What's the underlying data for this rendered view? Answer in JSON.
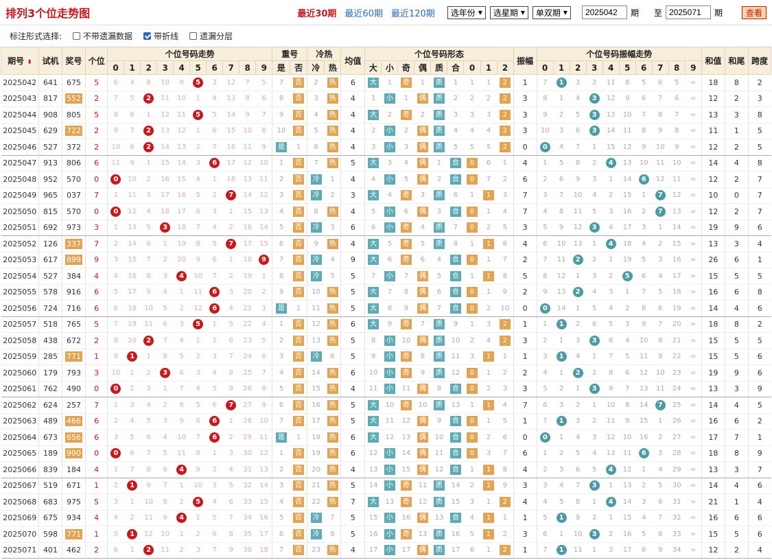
{
  "header": {
    "title": "排列3个位走势图",
    "range_links": [
      "最近30期",
      "最近60期",
      "最近120期"
    ],
    "active": 0,
    "selects": [
      "选年份",
      "选星期",
      "单双期"
    ],
    "from": "2025042",
    "to": "2025071",
    "qi": "期",
    "zhi": "至",
    "query": "查看"
  },
  "options": {
    "label": "标注形式选择:",
    "items": [
      {
        "label": "不带遗漏数据",
        "checked": false
      },
      {
        "label": "带折线",
        "checked": true
      },
      {
        "label": "遗漏分层",
        "checked": false
      }
    ]
  },
  "head_top": [
    "期号",
    "试机",
    "奖号",
    "个位",
    "个位号码走势",
    "重号",
    "冷热",
    "均值",
    "个位号码形态",
    "振幅",
    "个位号码振幅走势",
    "和值",
    "和尾",
    "跨度"
  ],
  "sort_icon": "sort-arrows-icon",
  "digits": [
    "0",
    "1",
    "2",
    "3",
    "4",
    "5",
    "6",
    "7",
    "8",
    "9"
  ],
  "sub_chong": [
    "是",
    "否"
  ],
  "sub_lr": [
    "冷",
    "热"
  ],
  "sub_form": [
    "大",
    "小",
    "奇",
    "偶",
    "质",
    "合",
    "0",
    "1",
    "2"
  ],
  "colors": {
    "red": "#c8181e",
    "orange": "#e2a353",
    "teal": "#5eabb5",
    "header": "#f7efdc"
  },
  "rows": [
    {
      "p": "2025042",
      "s": "641",
      "j": "675",
      "t": false,
      "d": 5,
      "c": "否",
      "h": "热",
      "m": 6,
      "b": "大",
      "q": "奇",
      "z": "质",
      "r": 2,
      "a": 1,
      "av": 1,
      "hz": 18,
      "hw": 8,
      "k": 2
    },
    {
      "p": "2025043",
      "s": "817",
      "j": "552",
      "t": true,
      "d": 2,
      "c": "否",
      "h": "热",
      "m": 4,
      "b": "小",
      "q": "偶",
      "z": "质",
      "r": 2,
      "a": 3,
      "av": 3,
      "hz": 12,
      "hw": 2,
      "k": 3
    },
    {
      "p": "2025044",
      "s": "908",
      "j": "805",
      "t": false,
      "d": 5,
      "c": "否",
      "h": "热",
      "m": 4,
      "b": "大",
      "q": "奇",
      "z": "质",
      "r": 2,
      "a": 3,
      "av": 3,
      "hz": 13,
      "hw": 3,
      "k": 8
    },
    {
      "p": "2025045",
      "s": "629",
      "j": "722",
      "t": true,
      "d": 2,
      "c": "否",
      "h": "热",
      "m": 4,
      "b": "小",
      "q": "偶",
      "z": "质",
      "r": 2,
      "a": 3,
      "av": 3,
      "hz": 11,
      "hw": 1,
      "k": 5
    },
    {
      "p": "2025046",
      "s": "527",
      "j": "372",
      "t": false,
      "d": 2,
      "c": "是",
      "h": "热",
      "m": 4,
      "b": "小",
      "q": "偶",
      "z": "质",
      "r": 2,
      "a": 0,
      "av": 0,
      "hz": 12,
      "hw": 2,
      "k": 5
    },
    {
      "p": "2025047",
      "s": "913",
      "j": "806",
      "t": false,
      "d": 6,
      "c": "否",
      "h": "热",
      "m": 5,
      "b": "大",
      "q": "偶",
      "z": "合",
      "r": 0,
      "a": 4,
      "av": 4,
      "hz": 14,
      "hw": 4,
      "k": 8
    },
    {
      "p": "2025048",
      "s": "952",
      "j": "570",
      "t": false,
      "d": 0,
      "c": "否",
      "h": "冷",
      "m": 4,
      "b": "小",
      "q": "偶",
      "z": "合",
      "r": 0,
      "a": 6,
      "av": 6,
      "hz": 12,
      "hw": 2,
      "k": 7
    },
    {
      "p": "2025049",
      "s": "965",
      "j": "037",
      "t": false,
      "d": 7,
      "c": "否",
      "h": "冷",
      "m": 3,
      "b": "大",
      "q": "奇",
      "z": "质",
      "r": 1,
      "a": 7,
      "av": 7,
      "hz": 10,
      "hw": 0,
      "k": 7
    },
    {
      "p": "2025050",
      "s": "815",
      "j": "570",
      "t": false,
      "d": 0,
      "c": "否",
      "h": "热",
      "m": 4,
      "b": "小",
      "q": "偶",
      "z": "合",
      "r": 0,
      "a": 7,
      "av": 7,
      "hz": 12,
      "hw": 2,
      "k": 7
    },
    {
      "p": "2025051",
      "s": "692",
      "j": "973",
      "t": false,
      "d": 3,
      "c": "否",
      "h": "冷",
      "m": 6,
      "b": "小",
      "q": "奇",
      "z": "质",
      "r": 0,
      "a": 3,
      "av": 3,
      "hz": 19,
      "hw": 9,
      "k": 6
    },
    {
      "p": "2025052",
      "s": "126",
      "j": "337",
      "t": true,
      "d": 7,
      "c": "否",
      "h": "热",
      "m": 4,
      "b": "大",
      "q": "奇",
      "z": "质",
      "r": 1,
      "a": 4,
      "av": 4,
      "hz": 13,
      "hw": 3,
      "k": 4
    },
    {
      "p": "2025053",
      "s": "617",
      "j": "899",
      "t": true,
      "d": 9,
      "c": "否",
      "h": "冷",
      "m": 9,
      "b": "大",
      "q": "奇",
      "z": "合",
      "r": 0,
      "a": 2,
      "av": 2,
      "hz": 26,
      "hw": 6,
      "k": 1
    },
    {
      "p": "2025054",
      "s": "527",
      "j": "384",
      "t": false,
      "d": 4,
      "c": "否",
      "h": "冷",
      "m": 5,
      "b": "小",
      "q": "偶",
      "z": "合",
      "r": 1,
      "a": 5,
      "av": 5,
      "hz": 15,
      "hw": 5,
      "k": 5
    },
    {
      "p": "2025055",
      "s": "578",
      "j": "916",
      "t": false,
      "d": 6,
      "c": "否",
      "h": "热",
      "m": 5,
      "b": "大",
      "q": "偶",
      "z": "合",
      "r": 0,
      "a": 2,
      "av": 2,
      "hz": 16,
      "hw": 6,
      "k": 8
    },
    {
      "p": "2025056",
      "s": "724",
      "j": "716",
      "t": false,
      "d": 6,
      "c": "是",
      "h": "热",
      "m": 5,
      "b": "大",
      "q": "偶",
      "z": "合",
      "r": 0,
      "a": 0,
      "av": 0,
      "hz": 14,
      "hw": 4,
      "k": 6
    },
    {
      "p": "2025057",
      "s": "518",
      "j": "765",
      "t": false,
      "d": 5,
      "c": "否",
      "h": "热",
      "m": 6,
      "b": "大",
      "q": "奇",
      "z": "质",
      "r": 2,
      "a": 1,
      "av": 1,
      "hz": 18,
      "hw": 8,
      "k": 2
    },
    {
      "p": "2025058",
      "s": "438",
      "j": "672",
      "t": false,
      "d": 2,
      "c": "否",
      "h": "热",
      "m": 5,
      "b": "小",
      "q": "偶",
      "z": "质",
      "r": 2,
      "a": 3,
      "av": 3,
      "hz": 15,
      "hw": 5,
      "k": 5
    },
    {
      "p": "2025059",
      "s": "285",
      "j": "771",
      "t": true,
      "d": 1,
      "c": "否",
      "h": "冷",
      "m": 5,
      "b": "小",
      "q": "奇",
      "z": "质",
      "r": 1,
      "a": 1,
      "av": 1,
      "hz": 15,
      "hw": 5,
      "k": 6
    },
    {
      "p": "2025060",
      "s": "179",
      "j": "793",
      "t": false,
      "d": 3,
      "c": "否",
      "h": "热",
      "m": 6,
      "b": "小",
      "q": "奇",
      "z": "质",
      "r": 0,
      "a": 2,
      "av": 2,
      "hz": 19,
      "hw": 9,
      "k": 6
    },
    {
      "p": "2025061",
      "s": "762",
      "j": "490",
      "t": false,
      "d": 0,
      "c": "否",
      "h": "热",
      "m": 4,
      "b": "小",
      "q": "偶",
      "z": "合",
      "r": 0,
      "a": 3,
      "av": 3,
      "hz": 13,
      "hw": 3,
      "k": 9
    },
    {
      "p": "2025062",
      "s": "624",
      "j": "257",
      "t": false,
      "d": 7,
      "c": "否",
      "h": "热",
      "m": 5,
      "b": "大",
      "q": "奇",
      "z": "质",
      "r": 1,
      "a": 7,
      "av": 7,
      "hz": 14,
      "hw": 4,
      "k": 5
    },
    {
      "p": "2025063",
      "s": "489",
      "j": "466",
      "t": true,
      "d": 6,
      "c": "否",
      "h": "热",
      "m": 5,
      "b": "大",
      "q": "偶",
      "z": "合",
      "r": 0,
      "a": 1,
      "av": 1,
      "hz": 16,
      "hw": 6,
      "k": 2
    },
    {
      "p": "2025064",
      "s": "673",
      "j": "656",
      "t": true,
      "d": 6,
      "c": "是",
      "h": "热",
      "m": 6,
      "b": "大",
      "q": "偶",
      "z": "合",
      "r": 0,
      "a": 0,
      "av": 0,
      "hz": 17,
      "hw": 7,
      "k": 1
    },
    {
      "p": "2025065",
      "s": "189",
      "j": "990",
      "t": true,
      "d": 0,
      "c": "否",
      "h": "热",
      "m": 6,
      "b": "小",
      "q": "偶",
      "z": "合",
      "r": 0,
      "a": 6,
      "av": 6,
      "hz": 18,
      "hw": 8,
      "k": 9
    },
    {
      "p": "2025066",
      "s": "839",
      "j": "184",
      "t": false,
      "d": 4,
      "c": "否",
      "h": "热",
      "m": 4,
      "b": "小",
      "q": "偶",
      "z": "合",
      "r": 1,
      "a": 4,
      "av": 4,
      "hz": 13,
      "hw": 3,
      "k": 7
    },
    {
      "p": "2025067",
      "s": "519",
      "j": "671",
      "t": false,
      "d": 1,
      "c": "否",
      "h": "热",
      "m": 5,
      "b": "小",
      "q": "奇",
      "z": "质",
      "r": 1,
      "a": 3,
      "av": 3,
      "hz": 14,
      "hw": 4,
      "k": 6
    },
    {
      "p": "2025068",
      "s": "683",
      "j": "975",
      "t": false,
      "d": 5,
      "c": "否",
      "h": "热",
      "m": 7,
      "b": "大",
      "q": "奇",
      "z": "质",
      "r": 2,
      "a": 4,
      "av": 4,
      "hz": 21,
      "hw": 1,
      "k": 4
    },
    {
      "p": "2025069",
      "s": "675",
      "j": "934",
      "t": false,
      "d": 4,
      "c": "否",
      "h": "冷",
      "m": 5,
      "b": "小",
      "q": "偶",
      "z": "合",
      "r": 1,
      "a": 1,
      "av": 1,
      "hz": 16,
      "hw": 6,
      "k": 6
    },
    {
      "p": "2025070",
      "s": "598",
      "j": "771",
      "t": true,
      "d": 1,
      "c": "否",
      "h": "冷",
      "m": 5,
      "b": "小",
      "q": "奇",
      "z": "质",
      "r": 1,
      "a": 3,
      "av": 3,
      "hz": 15,
      "hw": 5,
      "k": 6
    },
    {
      "p": "2025071",
      "s": "401",
      "j": "462",
      "t": false,
      "d": 2,
      "c": "否",
      "h": "热",
      "m": 4,
      "b": "小",
      "q": "偶",
      "z": "质",
      "r": 2,
      "a": 1,
      "av": 1,
      "hz": 12,
      "hw": 2,
      "k": 4
    }
  ]
}
